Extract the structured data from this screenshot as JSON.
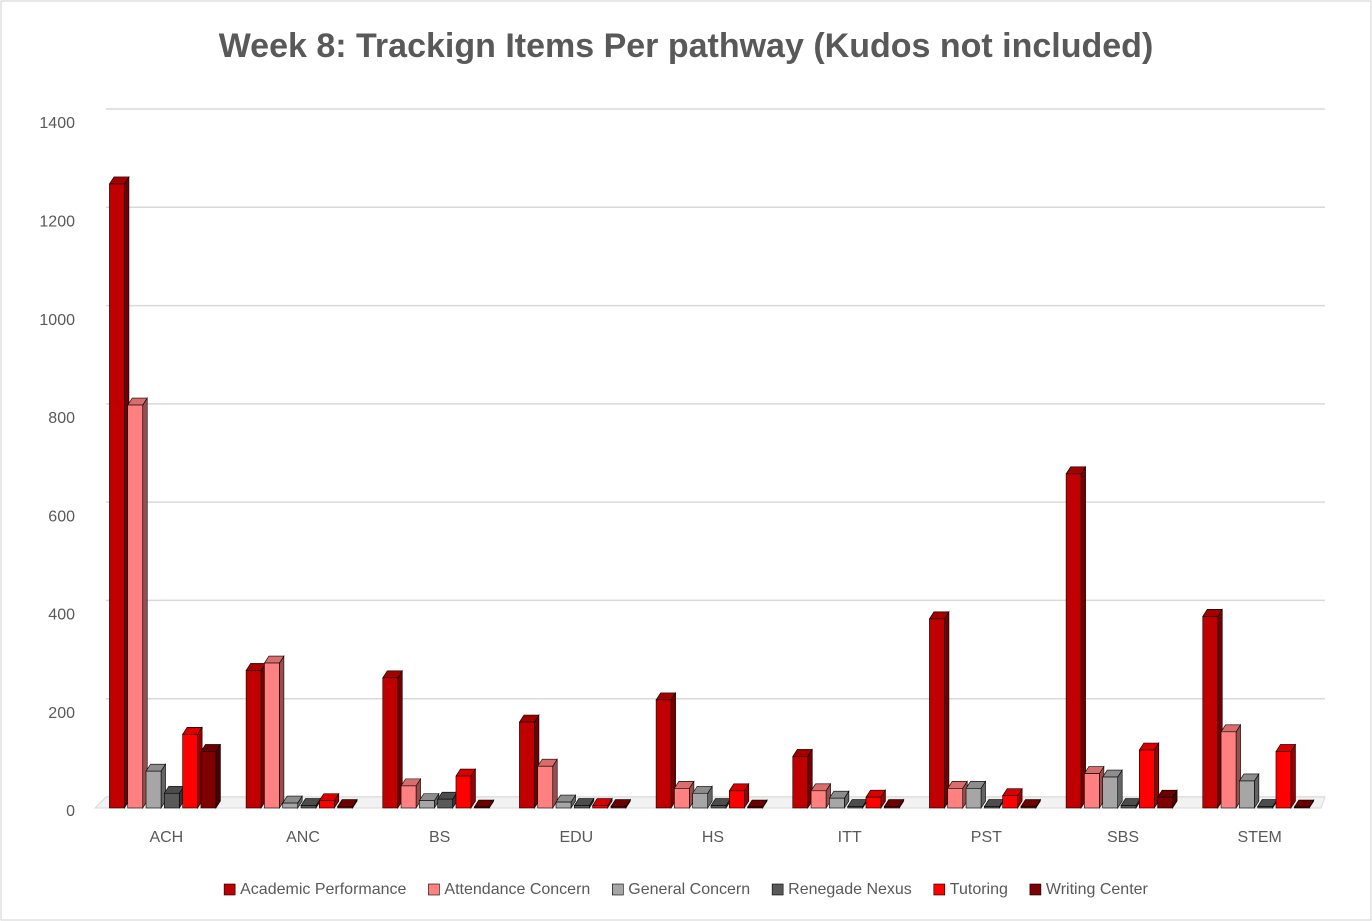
{
  "chart_data": {
    "type": "bar3d",
    "title": "Week 8: Trackign Items Per pathway (Kudos not included)",
    "categories": [
      "ACH",
      "ANC",
      "BS",
      "EDU",
      "HS",
      "ITT",
      "PST",
      "SBS",
      "STEM"
    ],
    "series": [
      {
        "name": "Academic Performance",
        "color": "#c00000",
        "values": [
          1270,
          280,
          265,
          175,
          220,
          105,
          385,
          680,
          390
        ]
      },
      {
        "name": "Attendance Concern",
        "color": "#ff8080",
        "values": [
          820,
          295,
          45,
          85,
          40,
          35,
          40,
          70,
          155
        ]
      },
      {
        "name": "General Concern",
        "color": "#a6a6a6",
        "values": [
          75,
          10,
          15,
          12,
          30,
          20,
          40,
          63,
          55
        ]
      },
      {
        "name": "Renegade Nexus",
        "color": "#595959",
        "values": [
          30,
          5,
          18,
          5,
          5,
          3,
          3,
          5,
          3
        ]
      },
      {
        "name": "Tutoring",
        "color": "#ff0000",
        "values": [
          150,
          15,
          65,
          5,
          35,
          22,
          25,
          118,
          115
        ]
      },
      {
        "name": "Writing Center",
        "color": "#7f0000",
        "values": [
          115,
          3,
          2,
          3,
          2,
          3,
          3,
          22,
          2
        ]
      }
    ],
    "ylim": [
      0,
      1400
    ],
    "yticks": [
      0,
      200,
      400,
      600,
      800,
      1000,
      1200,
      1400
    ],
    "grid": true,
    "legend": "bottom"
  }
}
